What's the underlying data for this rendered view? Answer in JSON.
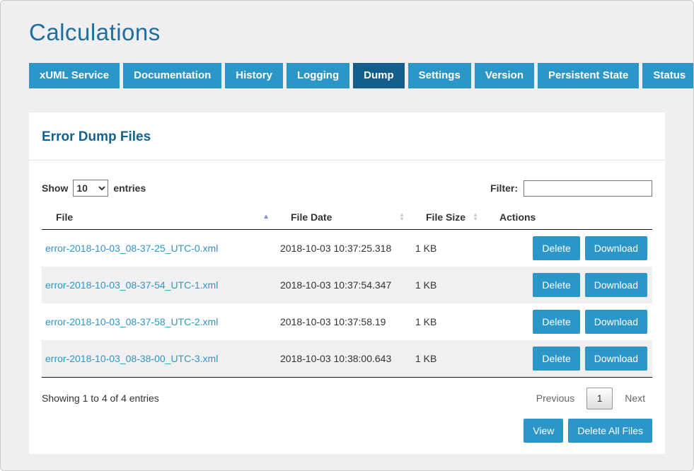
{
  "page": {
    "title": "Calculations"
  },
  "tabs": [
    {
      "label": "xUML Service",
      "active": false
    },
    {
      "label": "Documentation",
      "active": false
    },
    {
      "label": "History",
      "active": false
    },
    {
      "label": "Logging",
      "active": false
    },
    {
      "label": "Dump",
      "active": true
    },
    {
      "label": "Settings",
      "active": false
    },
    {
      "label": "Version",
      "active": false
    },
    {
      "label": "Persistent State",
      "active": false
    },
    {
      "label": "Status",
      "active": false
    }
  ],
  "panel": {
    "heading": "Error Dump Files"
  },
  "controls": {
    "show_label": "Show",
    "page_size": "10",
    "entries_label": "entries",
    "filter_label": "Filter:",
    "filter_value": ""
  },
  "table": {
    "columns": [
      {
        "label": "File",
        "sort": "asc"
      },
      {
        "label": "File Date",
        "sort": "both"
      },
      {
        "label": "File Size",
        "sort": "both"
      },
      {
        "label": "Actions",
        "sort": "none"
      }
    ],
    "row_actions": {
      "delete": "Delete",
      "download": "Download"
    },
    "rows": [
      {
        "file": "error-2018-10-03_08-37-25_UTC-0.xml",
        "date": "2018-10-03 10:37:25.318",
        "size": "1 KB"
      },
      {
        "file": "error-2018-10-03_08-37-54_UTC-1.xml",
        "date": "2018-10-03 10:37:54.347",
        "size": "1 KB"
      },
      {
        "file": "error-2018-10-03_08-37-58_UTC-2.xml",
        "date": "2018-10-03 10:37:58.19",
        "size": "1 KB"
      },
      {
        "file": "error-2018-10-03_08-38-00_UTC-3.xml",
        "date": "2018-10-03 10:38:00.643",
        "size": "1 KB"
      }
    ]
  },
  "footer": {
    "summary": "Showing 1 to 4 of 4 entries",
    "pagination": {
      "previous": "Previous",
      "page": "1",
      "next": "Next"
    },
    "buttons": {
      "view": "View",
      "delete_all": "Delete All Files"
    }
  },
  "icons": {
    "sort_asc_active": "▲",
    "sort_up": "▲",
    "sort_down": "▼"
  },
  "colors": {
    "accent": "#2d96c8",
    "accent_dark": "#135e8c",
    "heading": "#14618f",
    "title": "#1d6f9f",
    "stripe": "#f0f0f0"
  }
}
